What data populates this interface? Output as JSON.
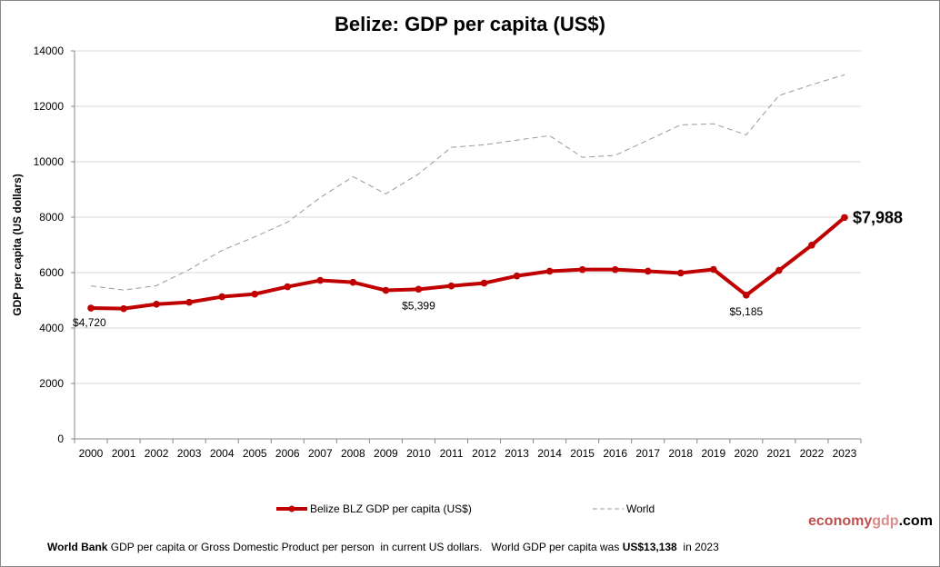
{
  "chart_data": {
    "type": "line",
    "title": "Belize: GDP per capita (US$)",
    "xlabel": "",
    "ylabel": "GDP per capita (US dollars)",
    "ylim": [
      0,
      14000
    ],
    "yticks": [
      0,
      2000,
      4000,
      6000,
      8000,
      10000,
      12000,
      14000
    ],
    "grid": true,
    "legend_position": "bottom",
    "categories": [
      "2000",
      "2001",
      "2002",
      "2003",
      "2004",
      "2005",
      "2006",
      "2007",
      "2008",
      "2009",
      "2010",
      "2011",
      "2012",
      "2013",
      "2014",
      "2015",
      "2016",
      "2017",
      "2018",
      "2019",
      "2020",
      "2021",
      "2022",
      "2023"
    ],
    "series": [
      {
        "name": "Belize BLZ GDP per capita (US$)",
        "color": "#c00000",
        "style": "solid-markers",
        "values": [
          4720,
          4700,
          4860,
          4930,
          5130,
          5225,
          5490,
          5720,
          5650,
          5360,
          5399,
          5520,
          5620,
          5880,
          6050,
          6110,
          6110,
          6050,
          5985,
          6115,
          5185,
          6080,
          6990,
          7988
        ]
      },
      {
        "name": "World",
        "color": "#999999",
        "style": "dashed",
        "values": [
          5520,
          5370,
          5530,
          6110,
          6800,
          7290,
          7820,
          8710,
          9460,
          8840,
          9560,
          10520,
          10610,
          10780,
          10940,
          10160,
          10230,
          10780,
          11330,
          11370,
          10970,
          12390,
          12780,
          13138
        ]
      }
    ],
    "annotations": [
      {
        "year": "2000",
        "text": "$4,720"
      },
      {
        "year": "2010",
        "text": "$5,399"
      },
      {
        "year": "2020",
        "text": "$5,185"
      },
      {
        "year": "2023",
        "text": "$7,988"
      }
    ]
  },
  "logo": {
    "part1": "economy",
    "part2": "gdp",
    "part3": ".com",
    "color1": "#c0504d",
    "color2": "#d98c8a"
  },
  "footer": {
    "source": "World Bank",
    "text": " GDP per capita or Gross Domestic Product per person  in current US dollars.   World GDP per capita was ",
    "world_value": "US$13,138",
    "year_text": "  in 2023"
  }
}
